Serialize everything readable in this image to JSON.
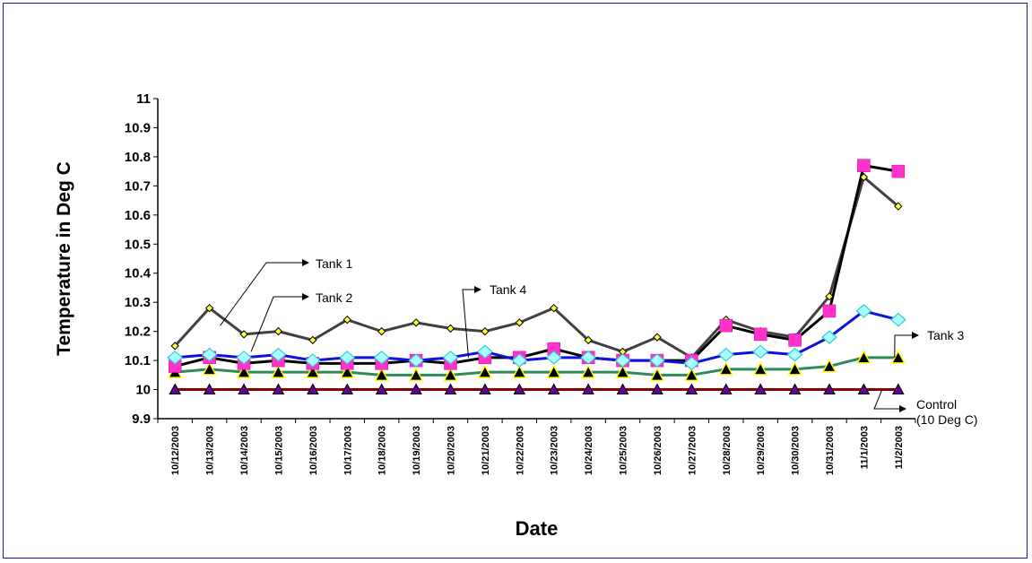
{
  "chart_data": {
    "type": "line",
    "title": "",
    "xlabel": "Date",
    "ylabel": "Temperature in Deg C",
    "ylim": [
      9.9,
      11
    ],
    "yticks": [
      "9.9",
      "10",
      "10.1",
      "10.2",
      "10.3",
      "10.4",
      "10.5",
      "10.6",
      "10.7",
      "10.8",
      "10.9",
      "11"
    ],
    "grid": false,
    "categories": [
      "10/12/2003",
      "10/13/2003",
      "10/14/2003",
      "10/15/2003",
      "10/16/2003",
      "10/17/2003",
      "10/18/2003",
      "10/19/2003",
      "10/20/2003",
      "10/21/2003",
      "10/22/2003",
      "10/23/2003",
      "10/24/2003",
      "10/25/2003",
      "10/26/2003",
      "10/27/2003",
      "10/28/2003",
      "10/29/2003",
      "10/30/2003",
      "10/31/2003",
      "11/1/2003",
      "11/2/2003"
    ],
    "series": [
      {
        "name": "Tank 1",
        "color": "#404040",
        "marker": "diamond-yellow-small",
        "values": [
          10.15,
          10.28,
          10.19,
          10.2,
          10.17,
          10.24,
          10.2,
          10.23,
          10.21,
          10.2,
          10.23,
          10.28,
          10.17,
          10.13,
          10.18,
          10.11,
          10.24,
          10.2,
          10.18,
          10.32,
          10.73,
          10.63
        ]
      },
      {
        "name": "Tank 2",
        "color": "#000000",
        "marker": "square-magenta",
        "values": [
          10.08,
          10.11,
          10.09,
          10.1,
          10.09,
          10.09,
          10.09,
          10.1,
          10.09,
          10.11,
          10.11,
          10.14,
          10.11,
          10.1,
          10.1,
          10.1,
          10.22,
          10.19,
          10.17,
          10.27,
          10.77,
          10.75
        ]
      },
      {
        "name": "Tank 3",
        "color": "#2e8b57",
        "marker": "triangle-yellow",
        "values": [
          10.06,
          10.07,
          10.06,
          10.06,
          10.06,
          10.06,
          10.05,
          10.05,
          10.05,
          10.06,
          10.06,
          10.06,
          10.06,
          10.06,
          10.05,
          10.05,
          10.07,
          10.07,
          10.07,
          10.08,
          10.11,
          10.11
        ]
      },
      {
        "name": "Tank 4",
        "color": "#1010e0",
        "marker": "diamond-cyan",
        "values": [
          10.11,
          10.12,
          10.11,
          10.12,
          10.1,
          10.11,
          10.11,
          10.1,
          10.11,
          10.13,
          10.1,
          10.11,
          10.11,
          10.1,
          10.1,
          10.09,
          10.12,
          10.13,
          10.12,
          10.18,
          10.27,
          10.24
        ]
      },
      {
        "name": "Control\n(10 Deg C)",
        "color": "#8b0000",
        "marker": "triangle-purple",
        "values": [
          10,
          10,
          10,
          10,
          10,
          10,
          10,
          10,
          10,
          10,
          10,
          10,
          10,
          10,
          10,
          10,
          10,
          10,
          10,
          10,
          10,
          10
        ]
      }
    ],
    "annotations": [
      {
        "label": "Tank 1",
        "series": 0
      },
      {
        "label": "Tank 2",
        "series": 1
      },
      {
        "label": "Tank 4",
        "series": 3
      },
      {
        "label": "Tank 3",
        "series": 2
      },
      {
        "label_lines": [
          "Control",
          "(10 Deg C)"
        ],
        "series": 4
      }
    ]
  }
}
